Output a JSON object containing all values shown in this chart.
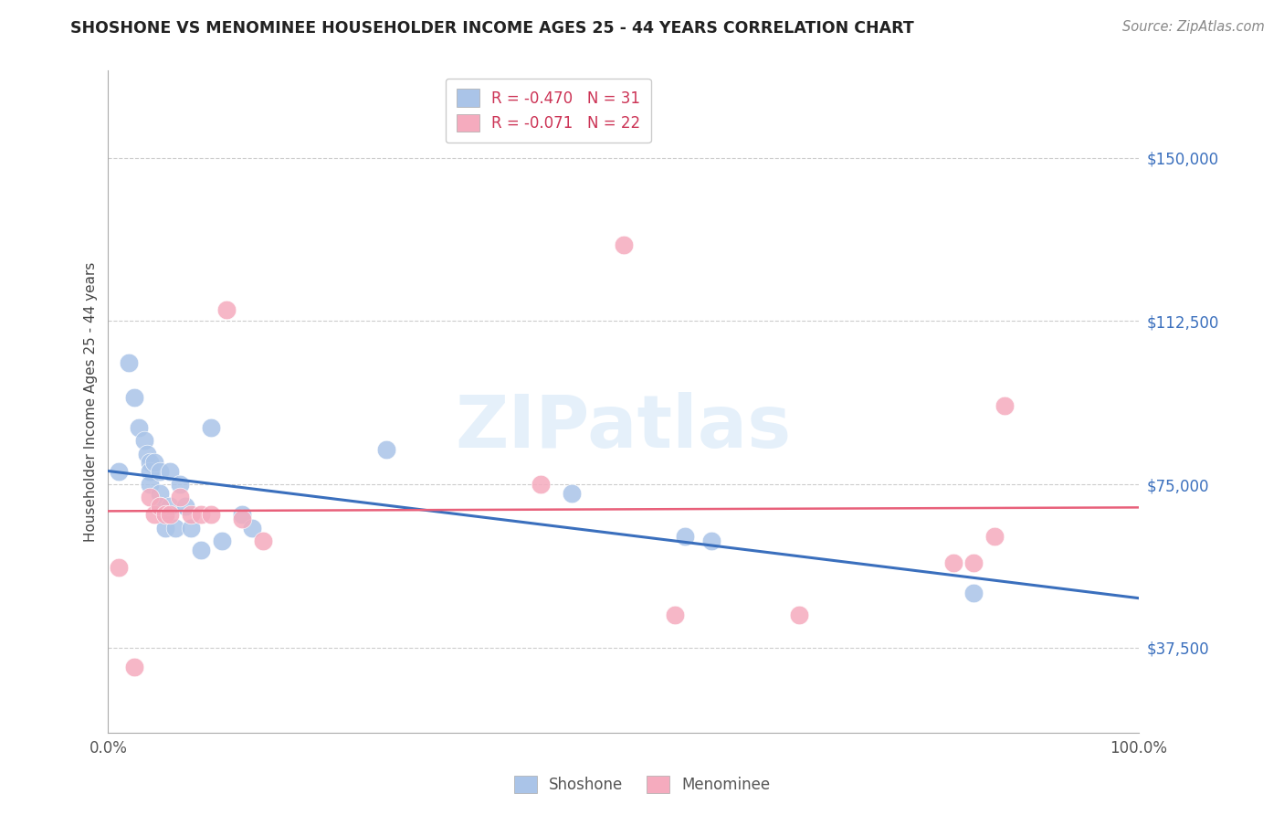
{
  "title": "SHOSHONE VS MENOMINEE HOUSEHOLDER INCOME AGES 25 - 44 YEARS CORRELATION CHART",
  "source": "Source: ZipAtlas.com",
  "ylabel": "Householder Income Ages 25 - 44 years",
  "xlim": [
    0,
    1.0
  ],
  "ylim": [
    18000,
    170000
  ],
  "yticks": [
    37500,
    75000,
    112500,
    150000
  ],
  "ytick_labels": [
    "$37,500",
    "$75,000",
    "$112,500",
    "$150,000"
  ],
  "xtick_positions": [
    0.0,
    0.1,
    0.2,
    0.3,
    0.4,
    0.5,
    0.6,
    0.7,
    0.8,
    0.9,
    1.0
  ],
  "xtick_labels": [
    "0.0%",
    "",
    "",
    "",
    "",
    "",
    "",
    "",
    "",
    "",
    "100.0%"
  ],
  "watermark": "ZIPatlas",
  "legend_R_shoshone": "R = -0.470",
  "legend_N_shoshone": "N = 31",
  "legend_R_menominee": "R = -0.071",
  "legend_N_menominee": "N = 22",
  "shoshone_color": "#aac4e8",
  "menominee_color": "#f5abbe",
  "shoshone_line_color": "#3a6fbd",
  "menominee_line_color": "#e8607a",
  "background_color": "#ffffff",
  "grid_color": "#cccccc",
  "shoshone_x": [
    0.01,
    0.02,
    0.025,
    0.03,
    0.035,
    0.038,
    0.04,
    0.04,
    0.04,
    0.045,
    0.05,
    0.05,
    0.05,
    0.055,
    0.055,
    0.06,
    0.06,
    0.065,
    0.07,
    0.075,
    0.08,
    0.09,
    0.1,
    0.11,
    0.13,
    0.14,
    0.27,
    0.45,
    0.56,
    0.585,
    0.84
  ],
  "shoshone_y": [
    78000,
    103000,
    95000,
    88000,
    85000,
    82000,
    80000,
    78000,
    75000,
    80000,
    78000,
    73000,
    70000,
    68000,
    65000,
    78000,
    70000,
    65000,
    75000,
    70000,
    65000,
    60000,
    88000,
    62000,
    68000,
    65000,
    83000,
    73000,
    63000,
    62000,
    50000
  ],
  "menominee_x": [
    0.01,
    0.025,
    0.04,
    0.045,
    0.05,
    0.055,
    0.06,
    0.07,
    0.08,
    0.09,
    0.1,
    0.115,
    0.13,
    0.15,
    0.5,
    0.55,
    0.67,
    0.82,
    0.84,
    0.86,
    0.87,
    0.42
  ],
  "menominee_y": [
    56000,
    33000,
    72000,
    68000,
    70000,
    68000,
    68000,
    72000,
    68000,
    68000,
    68000,
    115000,
    67000,
    62000,
    130000,
    45000,
    45000,
    57000,
    57000,
    63000,
    93000,
    75000
  ]
}
